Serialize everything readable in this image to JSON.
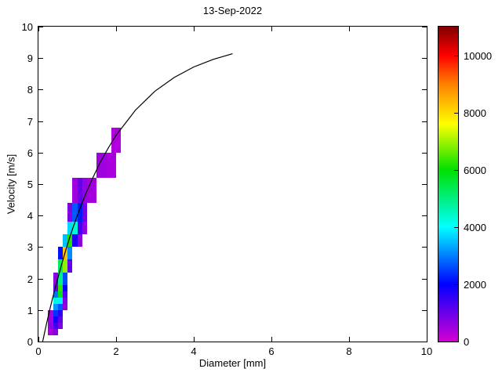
{
  "figure": {
    "background": "#ffffff"
  },
  "chart_data": {
    "type": "heatmap",
    "title": "13-Sep-2022",
    "xlabel": "Diameter [mm]",
    "ylabel": "Velocity [m/s]",
    "xlim": [
      0,
      10
    ],
    "ylim": [
      0,
      10
    ],
    "xticks": [
      0,
      2,
      4,
      6,
      8,
      10
    ],
    "yticks": [
      0,
      1,
      2,
      3,
      4,
      5,
      6,
      7,
      8,
      9,
      10
    ],
    "grid": false,
    "legend": "none",
    "colorbar": {
      "position": "right",
      "vmin": 0,
      "vmax": 11000,
      "ticks": [
        0,
        2000,
        4000,
        6000,
        8000,
        10000
      ],
      "stops": [
        [
          0,
          "#d400d4"
        ],
        [
          2000,
          "#0000ff"
        ],
        [
          4000,
          "#00ffff"
        ],
        [
          6000,
          "#00e000"
        ],
        [
          7600,
          "#ffff00"
        ],
        [
          9000,
          "#ff8000"
        ],
        [
          10000,
          "#ff0000"
        ],
        [
          11000,
          "#800000"
        ]
      ]
    },
    "cells_format": [
      "d_min_mm",
      "d_max_mm",
      "v_min_ms",
      "v_max_ms",
      "count"
    ],
    "cells": [
      [
        0.25,
        0.375,
        0.2,
        0.4,
        400
      ],
      [
        0.375,
        0.5,
        0.2,
        0.4,
        700
      ],
      [
        0.25,
        0.375,
        0.4,
        0.6,
        600
      ],
      [
        0.375,
        0.5,
        0.4,
        0.6,
        1400
      ],
      [
        0.5,
        0.625,
        0.4,
        0.6,
        800
      ],
      [
        0.25,
        0.375,
        0.6,
        0.8,
        500
      ],
      [
        0.375,
        0.5,
        0.6,
        0.8,
        1800
      ],
      [
        0.5,
        0.625,
        0.6,
        0.8,
        1100
      ],
      [
        0.25,
        0.375,
        0.8,
        1.0,
        450
      ],
      [
        0.375,
        0.5,
        0.8,
        1.0,
        2400
      ],
      [
        0.5,
        0.625,
        0.8,
        1.0,
        1600
      ],
      [
        0.375,
        0.5,
        1.0,
        1.2,
        3200
      ],
      [
        0.5,
        0.625,
        1.0,
        1.2,
        2700
      ],
      [
        0.625,
        0.75,
        1.0,
        1.2,
        600
      ],
      [
        0.375,
        0.5,
        1.2,
        1.4,
        4300
      ],
      [
        0.5,
        0.625,
        1.2,
        1.4,
        3900
      ],
      [
        0.625,
        0.75,
        1.2,
        1.4,
        800
      ],
      [
        0.375,
        0.5,
        1.4,
        1.6,
        2900
      ],
      [
        0.5,
        0.625,
        1.4,
        1.6,
        5800
      ],
      [
        0.625,
        0.75,
        1.4,
        1.6,
        1200
      ],
      [
        0.375,
        0.5,
        1.6,
        1.8,
        1000
      ],
      [
        0.5,
        0.625,
        1.6,
        1.8,
        6300
      ],
      [
        0.625,
        0.75,
        1.6,
        1.8,
        2000
      ],
      [
        0.375,
        0.5,
        1.8,
        2.2,
        700
      ],
      [
        0.5,
        0.625,
        1.8,
        2.2,
        4900
      ],
      [
        0.625,
        0.75,
        1.8,
        2.2,
        2600
      ],
      [
        0.5,
        0.625,
        2.2,
        2.6,
        5300
      ],
      [
        0.625,
        0.75,
        2.2,
        2.6,
        6900
      ],
      [
        0.75,
        0.875,
        2.2,
        2.6,
        1100
      ],
      [
        0.5,
        0.625,
        2.6,
        3.0,
        2100
      ],
      [
        0.625,
        0.75,
        2.6,
        3.0,
        8300
      ],
      [
        0.75,
        0.875,
        2.6,
        3.0,
        3100
      ],
      [
        0.625,
        0.75,
        3.0,
        3.4,
        3500
      ],
      [
        0.75,
        0.875,
        3.0,
        3.4,
        6200
      ],
      [
        0.875,
        1.0,
        3.0,
        3.4,
        1700
      ],
      [
        1.0,
        1.125,
        3.0,
        3.4,
        700
      ],
      [
        0.75,
        0.875,
        3.4,
        3.8,
        3700
      ],
      [
        0.875,
        1.0,
        3.4,
        3.8,
        4300
      ],
      [
        1.0,
        1.125,
        3.4,
        3.8,
        1300
      ],
      [
        1.125,
        1.25,
        3.4,
        3.8,
        600
      ],
      [
        0.75,
        0.875,
        3.8,
        4.4,
        800
      ],
      [
        0.875,
        1.0,
        3.8,
        4.4,
        2700
      ],
      [
        1.0,
        1.125,
        3.8,
        4.4,
        2200
      ],
      [
        1.125,
        1.25,
        3.8,
        4.4,
        900
      ],
      [
        0.875,
        1.0,
        4.4,
        5.2,
        500
      ],
      [
        1.0,
        1.125,
        4.4,
        5.2,
        1000
      ],
      [
        1.125,
        1.25,
        4.4,
        5.2,
        600
      ],
      [
        1.25,
        1.5,
        4.4,
        5.2,
        450
      ],
      [
        1.5,
        1.75,
        5.2,
        6.0,
        500
      ],
      [
        1.75,
        2.0,
        5.2,
        6.0,
        400
      ],
      [
        1.875,
        2.125,
        6.0,
        6.8,
        350
      ]
    ],
    "curve": {
      "name": "terminal-velocity-curve",
      "color": "#000000",
      "points": [
        [
          0.11,
          0.0
        ],
        [
          0.2,
          0.52
        ],
        [
          0.3,
          1.05
        ],
        [
          0.4,
          1.55
        ],
        [
          0.5,
          2.02
        ],
        [
          0.6,
          2.46
        ],
        [
          0.7,
          2.88
        ],
        [
          0.8,
          3.28
        ],
        [
          0.9,
          3.65
        ],
        [
          1.0,
          4.0
        ],
        [
          1.2,
          4.64
        ],
        [
          1.4,
          5.2
        ],
        [
          1.6,
          5.71
        ],
        [
          1.8,
          6.15
        ],
        [
          2.0,
          6.55
        ],
        [
          2.5,
          7.35
        ],
        [
          3.0,
          7.95
        ],
        [
          3.5,
          8.39
        ],
        [
          4.0,
          8.72
        ],
        [
          4.5,
          8.96
        ],
        [
          5.0,
          9.14
        ]
      ]
    }
  }
}
